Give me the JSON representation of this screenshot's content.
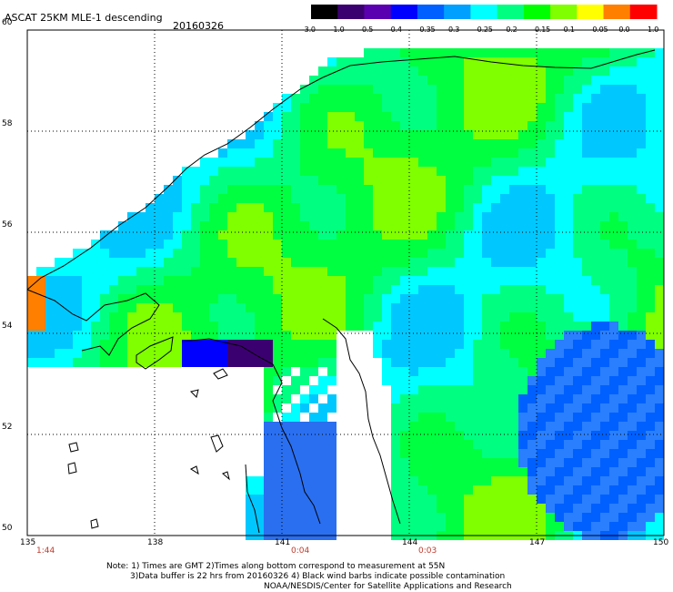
{
  "header": {
    "title": "ASCAT 25KM MLE-1 descending",
    "date": "20160326"
  },
  "colorbar": {
    "labels": [
      "-3.0",
      "-1.0",
      "-0.5",
      "-0.4",
      "-0.35",
      "-0.3",
      "-0.25",
      "-0.2",
      "-0.15",
      "-0.1",
      "-0.05",
      "0.0",
      "1.0"
    ],
    "colors": [
      "#000000",
      "#3b0070",
      "#5a00b0",
      "#0000ff",
      "#0060ff",
      "#00a0ff",
      "#00ffff",
      "#00ff80",
      "#00ff00",
      "#80ff00",
      "#ffff00",
      "#ff8000",
      "#ff0000"
    ]
  },
  "axes": {
    "lat_labels": [
      "60",
      "58",
      "56",
      "54",
      "52",
      "50"
    ],
    "lon_labels": [
      "135",
      "138",
      "141",
      "144",
      "147",
      "150"
    ],
    "times": [
      {
        "lon": "135",
        "label": "1:44"
      },
      {
        "lon": "141",
        "label": "0:04"
      },
      {
        "lon": "144",
        "label": "0:03"
      }
    ]
  },
  "notes": {
    "line1": "Note: 1) Times are GMT 2)Times along bottom correspond to measurement at 55N",
    "line2": "3)Data buffer is 22 hrs from 20160326 4) Black wind barbs indicate possible contamination",
    "line3": "NOAA/NESDIS/Center for Satellite Applications and Research"
  }
}
